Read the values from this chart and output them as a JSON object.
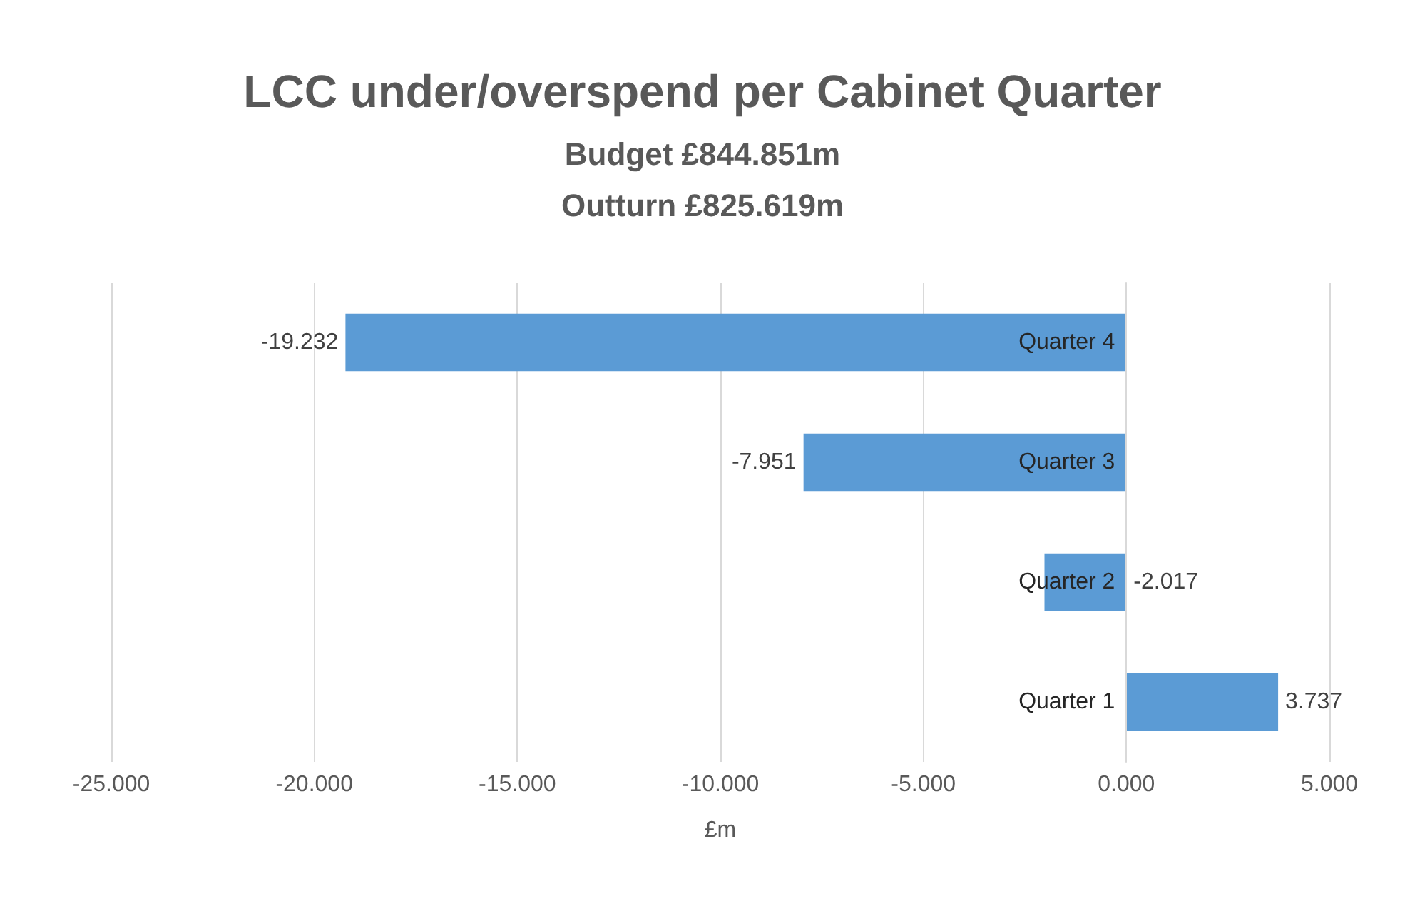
{
  "chart_data": {
    "type": "bar",
    "orientation": "horizontal",
    "title": "LCC under/overspend per Cabinet Quarter",
    "subtitle": "Budget £844.851m\nOutturn £825.619m",
    "xlabel": "£m",
    "categories": [
      "Quarter 4",
      "Quarter 3",
      "Quarter 2",
      "Quarter 1"
    ],
    "values": [
      -19.232,
      -7.951,
      -2.017,
      3.737
    ],
    "color": "#5b9bd5",
    "xlim": [
      -25,
      5
    ],
    "xticks": [
      {
        "value": -25,
        "label": "-25.000"
      },
      {
        "value": -20,
        "label": "-20.000"
      },
      {
        "value": -15,
        "label": "-15.000"
      },
      {
        "value": -10,
        "label": "-10.000"
      },
      {
        "value": -5,
        "label": "-5.000"
      },
      {
        "value": 0,
        "label": "0.000"
      },
      {
        "value": 5,
        "label": "5.000"
      }
    ],
    "grid": "x",
    "data_labels": true
  }
}
